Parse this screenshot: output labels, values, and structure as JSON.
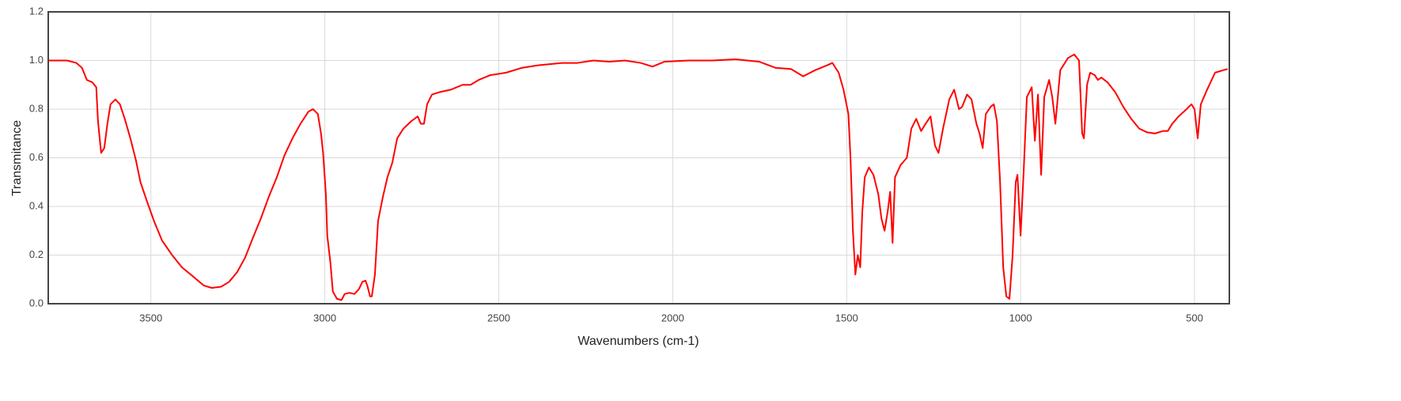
{
  "chart_data": {
    "type": "line",
    "x_label": "Wavenumbers (cm-1)",
    "y_label": "Transmitance",
    "x": [
      3796,
      3741,
      3714,
      3698,
      3684,
      3668,
      3657,
      3652,
      3643,
      3634,
      3625,
      3616,
      3602,
      3589,
      3575,
      3559,
      3543,
      3530,
      3511,
      3491,
      3468,
      3439,
      3411,
      3377,
      3348,
      3325,
      3298,
      3275,
      3252,
      3229,
      3207,
      3184,
      3161,
      3138,
      3116,
      3093,
      3070,
      3047,
      3034,
      3020,
      3011,
      3005,
      2997,
      2993,
      2984,
      2977,
      2965,
      2952,
      2943,
      2929,
      2915,
      2902,
      2892,
      2883,
      2877,
      2870,
      2865,
      2856,
      2847,
      2833,
      2820,
      2806,
      2792,
      2774,
      2752,
      2733,
      2724,
      2715,
      2706,
      2692,
      2670,
      2638,
      2604,
      2581,
      2558,
      2524,
      2479,
      2433,
      2388,
      2319,
      2274,
      2228,
      2183,
      2137,
      2092,
      2058,
      2024,
      1955,
      1887,
      1819,
      1751,
      1705,
      1660,
      1625,
      1591,
      1557,
      1541,
      1523,
      1509,
      1495,
      1489,
      1482,
      1475,
      1468,
      1461,
      1455,
      1448,
      1436,
      1423,
      1409,
      1400,
      1391,
      1382,
      1375,
      1368,
      1361,
      1345,
      1327,
      1314,
      1300,
      1286,
      1273,
      1259,
      1246,
      1236,
      1223,
      1205,
      1191,
      1177,
      1168,
      1154,
      1141,
      1127,
      1118,
      1109,
      1100,
      1086,
      1077,
      1068,
      1059,
      1050,
      1041,
      1032,
      1023,
      1014,
      1009,
      1000,
      991,
      982,
      968,
      959,
      950,
      941,
      932,
      918,
      909,
      900,
      886,
      864,
      846,
      832,
      823,
      818,
      809,
      800,
      787,
      778,
      768,
      750,
      728,
      705,
      682,
      659,
      637,
      614,
      591,
      577,
      564,
      546,
      523,
      509,
      500,
      491,
      482,
      464,
      441,
      418,
      405
    ],
    "values": [
      1.0,
      1.0,
      0.99,
      0.97,
      0.92,
      0.91,
      0.89,
      0.75,
      0.62,
      0.64,
      0.74,
      0.82,
      0.84,
      0.82,
      0.76,
      0.68,
      0.59,
      0.5,
      0.42,
      0.34,
      0.26,
      0.2,
      0.15,
      0.11,
      0.075,
      0.065,
      0.07,
      0.09,
      0.13,
      0.19,
      0.27,
      0.35,
      0.44,
      0.52,
      0.61,
      0.68,
      0.74,
      0.79,
      0.8,
      0.78,
      0.7,
      0.62,
      0.45,
      0.28,
      0.17,
      0.05,
      0.02,
      0.015,
      0.04,
      0.045,
      0.04,
      0.06,
      0.09,
      0.095,
      0.07,
      0.03,
      0.03,
      0.12,
      0.34,
      0.44,
      0.52,
      0.58,
      0.68,
      0.72,
      0.75,
      0.77,
      0.74,
      0.74,
      0.82,
      0.86,
      0.87,
      0.88,
      0.9,
      0.9,
      0.92,
      0.94,
      0.95,
      0.97,
      0.98,
      0.99,
      0.99,
      1.0,
      0.995,
      1.0,
      0.99,
      0.975,
      0.995,
      1.0,
      1.0,
      1.005,
      0.995,
      0.97,
      0.965,
      0.935,
      0.96,
      0.98,
      0.99,
      0.95,
      0.88,
      0.78,
      0.6,
      0.3,
      0.12,
      0.2,
      0.15,
      0.38,
      0.52,
      0.56,
      0.53,
      0.45,
      0.35,
      0.3,
      0.38,
      0.46,
      0.25,
      0.52,
      0.57,
      0.6,
      0.72,
      0.76,
      0.71,
      0.74,
      0.77,
      0.65,
      0.62,
      0.72,
      0.84,
      0.88,
      0.8,
      0.81,
      0.86,
      0.84,
      0.74,
      0.7,
      0.64,
      0.78,
      0.81,
      0.82,
      0.75,
      0.5,
      0.15,
      0.03,
      0.02,
      0.2,
      0.5,
      0.53,
      0.28,
      0.55,
      0.85,
      0.89,
      0.67,
      0.86,
      0.53,
      0.85,
      0.92,
      0.85,
      0.74,
      0.96,
      1.01,
      1.025,
      1.0,
      0.7,
      0.68,
      0.9,
      0.95,
      0.94,
      0.92,
      0.93,
      0.91,
      0.87,
      0.81,
      0.76,
      0.72,
      0.705,
      0.7,
      0.71,
      0.71,
      0.74,
      0.77,
      0.8,
      0.82,
      0.8,
      0.68,
      0.82,
      0.88,
      0.95,
      0.96,
      0.965
    ],
    "color": "#ff0000",
    "xlim": [
      3795,
      400
    ],
    "xticks": [
      3500,
      3000,
      2500,
      2000,
      1500,
      1000,
      500
    ],
    "ylim": [
      0,
      1.2
    ],
    "yticks": [
      {
        "value": 0,
        "label": "0.0"
      },
      0.2,
      0.4,
      0.6,
      0.8,
      {
        "value": 1,
        "label": "1.0"
      },
      1.2
    ],
    "grid": true
  }
}
